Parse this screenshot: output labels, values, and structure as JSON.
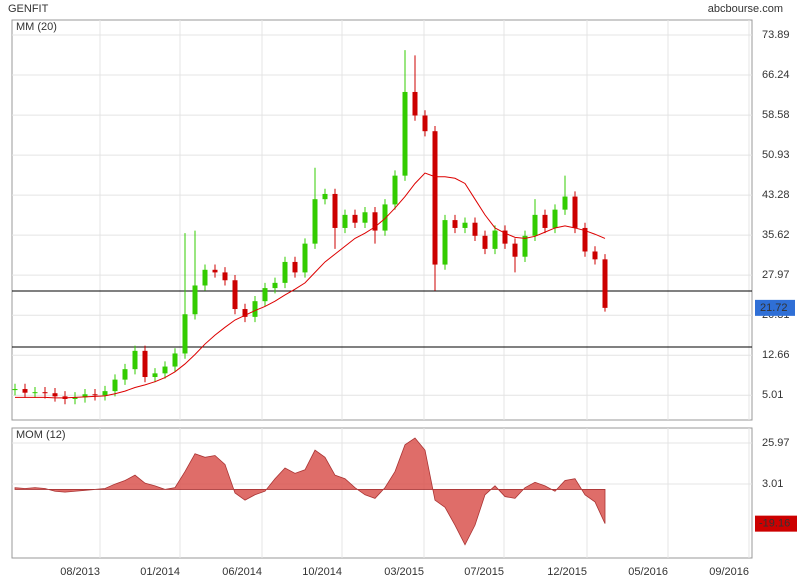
{
  "chart_data": [
    {
      "type": "candlestick",
      "title": "GENFIT",
      "source": "abcbourse.com",
      "up_color": "#33cc00",
      "down_color": "#cc0000",
      "grid": true,
      "xlim": [
        -0.3,
        73.7
      ],
      "xticks": [
        {
          "value": 8.5,
          "label": "08/2013"
        },
        {
          "value": 16.5,
          "label": "01/2014"
        },
        {
          "value": 24.7,
          "label": "06/2014"
        },
        {
          "value": 32.7,
          "label": "10/2014"
        },
        {
          "value": 40.9,
          "label": "03/2015"
        },
        {
          "value": 48.9,
          "label": "07/2015"
        },
        {
          "value": 57.2,
          "label": "12/2015"
        },
        {
          "value": 65.3,
          "label": "05/2016"
        },
        {
          "value": 73.4,
          "label": "09/2016"
        }
      ],
      "ylim": [
        0.28,
        76.76
      ],
      "yticks": [
        5.01,
        12.66,
        20.31,
        27.97,
        35.62,
        43.28,
        50.93,
        58.58,
        66.24,
        73.89
      ],
      "levels": [
        24.94,
        14.24
      ],
      "open": [
        6.0,
        6.2,
        5.5,
        5.6,
        5.4,
        4.8,
        4.3,
        4.6,
        5.2,
        5.0,
        5.8,
        8.0,
        10.0,
        13.5,
        8.5,
        9.2,
        10.5,
        13.0,
        20.5,
        26.0,
        29.0,
        28.5,
        27.0,
        21.5,
        20.0,
        23.0,
        25.5,
        26.5,
        30.5,
        28.5,
        34.0,
        42.5,
        43.5,
        37.0,
        39.5,
        38.0,
        40.0,
        36.5,
        41.5,
        47.0,
        63.0,
        58.5,
        55.5,
        30.0,
        38.5,
        37.0,
        38.0,
        35.5,
        33.0,
        36.5,
        34.0,
        31.5,
        35.5,
        39.5,
        37.0,
        40.5,
        43.0,
        37.0,
        32.5,
        31.0
      ],
      "high": [
        7.2,
        7.2,
        6.6,
        6.6,
        6.4,
        5.8,
        5.6,
        6.2,
        6.2,
        6.8,
        9.0,
        11.0,
        14.5,
        14.5,
        10.2,
        11.5,
        14.0,
        36.0,
        36.5,
        30.0,
        30.0,
        29.5,
        28.0,
        22.5,
        24.0,
        26.5,
        27.5,
        31.5,
        31.5,
        35.0,
        48.5,
        44.5,
        44.5,
        40.5,
        40.5,
        41.0,
        41.0,
        42.5,
        48.0,
        71.0,
        70.0,
        59.5,
        56.5,
        39.5,
        39.5,
        39.0,
        39.0,
        36.5,
        37.5,
        37.5,
        35.0,
        36.5,
        42.5,
        40.5,
        41.5,
        47.0,
        44.0,
        38.0,
        33.5,
        32.0
      ],
      "low": [
        5.0,
        4.5,
        4.5,
        4.4,
        3.8,
        3.3,
        3.3,
        3.6,
        4.0,
        4.0,
        4.8,
        7.0,
        9.0,
        7.5,
        7.5,
        8.2,
        9.5,
        12.0,
        19.5,
        25.0,
        27.5,
        26.0,
        20.5,
        19.0,
        19.0,
        22.0,
        24.5,
        25.5,
        27.5,
        27.5,
        33.0,
        41.5,
        33.0,
        36.0,
        37.0,
        37.0,
        34.0,
        35.5,
        40.5,
        46.0,
        57.5,
        54.5,
        25.0,
        29.0,
        36.0,
        36.0,
        34.5,
        32.0,
        32.0,
        33.0,
        28.5,
        30.5,
        34.5,
        36.0,
        36.0,
        39.5,
        36.0,
        31.5,
        30.0,
        21.0
      ],
      "close": [
        6.2,
        5.5,
        5.6,
        5.4,
        4.8,
        4.3,
        4.6,
        5.2,
        5.0,
        5.8,
        8.0,
        10.0,
        13.5,
        8.5,
        9.2,
        10.5,
        13.0,
        20.5,
        26.0,
        29.0,
        28.5,
        27.0,
        21.5,
        20.0,
        23.0,
        25.5,
        26.5,
        30.5,
        28.5,
        34.0,
        42.5,
        43.5,
        37.0,
        39.5,
        38.0,
        40.0,
        36.5,
        41.5,
        47.0,
        63.0,
        58.5,
        55.5,
        30.0,
        38.5,
        37.0,
        38.0,
        35.5,
        33.0,
        36.5,
        34.0,
        31.5,
        35.5,
        39.5,
        37.0,
        40.5,
        43.0,
        37.0,
        32.5,
        31.0,
        21.72
      ],
      "last_color": "#2f6fd6",
      "overlays": [
        {
          "name": "MM (20)",
          "color": "#dd0000",
          "values": [
            4.6,
            4.6,
            4.6,
            4.6,
            4.5,
            4.5,
            4.6,
            4.7,
            4.8,
            4.9,
            5.3,
            5.8,
            6.5,
            7.0,
            7.6,
            8.4,
            9.5,
            11.0,
            12.8,
            14.8,
            16.5,
            18.0,
            19.4,
            20.3,
            21.2,
            22.0,
            23.0,
            24.2,
            25.3,
            26.5,
            28.5,
            30.5,
            32.0,
            33.5,
            35.0,
            36.0,
            37.2,
            38.8,
            40.8,
            43.0,
            45.5,
            47.5,
            46.8,
            46.8,
            46.5,
            45.5,
            42.5,
            39.5,
            37.0,
            36.0,
            35.2,
            35.0,
            35.4,
            36.2,
            37.0,
            37.4,
            37.0,
            36.5,
            35.8,
            35.0
          ]
        }
      ]
    },
    {
      "type": "area",
      "title": "MOM (12)",
      "color": "#d9534f",
      "title_color": "#dd0000",
      "ylim": [
        -38.4,
        34.4
      ],
      "yticks": [
        3.01,
        25.97
      ],
      "last_color": "#cc0000",
      "values": [
        1,
        0.5,
        1,
        0.5,
        -1,
        -1.5,
        -1,
        -0.5,
        0,
        0.5,
        3,
        5,
        8,
        3.5,
        2,
        0,
        1,
        10,
        20,
        18,
        19,
        14,
        -2,
        -6,
        -3,
        -1,
        6,
        12,
        9,
        11,
        22,
        18,
        8,
        6,
        1,
        -3,
        -5,
        1,
        10,
        25,
        28.8,
        22,
        -6,
        -10,
        -20,
        -31,
        -20,
        -3,
        2,
        -4,
        -5,
        1,
        4,
        2,
        -1,
        5,
        6,
        -3,
        -7,
        -19.16
      ]
    }
  ]
}
